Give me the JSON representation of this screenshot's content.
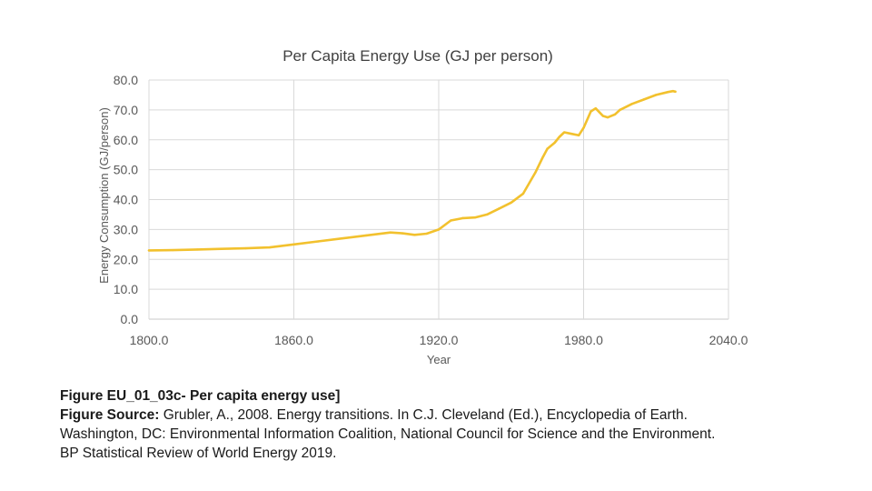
{
  "chart_data": {
    "type": "line",
    "title": "Per Capita Energy Use (GJ per person)",
    "xlabel": "Year",
    "ylabel": "Energy Consumption (GJ/person)",
    "xlim": [
      1800,
      2040
    ],
    "ylim": [
      0,
      80
    ],
    "xticks": [
      "1800.0",
      "1860.0",
      "1920.0",
      "1980.0",
      "2040.0"
    ],
    "yticks": [
      "0.0",
      "10.0",
      "20.0",
      "30.0",
      "40.0",
      "50.0",
      "60.0",
      "70.0",
      "80.0"
    ],
    "grid": true,
    "color": "#F2C12E",
    "series": [
      {
        "x": [
          1800,
          1810,
          1820,
          1830,
          1840,
          1850,
          1860,
          1870,
          1880,
          1890,
          1900,
          1905,
          1910,
          1915,
          1920,
          1925,
          1930,
          1935,
          1940,
          1945,
          1950,
          1955,
          1960,
          1963,
          1965,
          1968,
          1970,
          1972,
          1975,
          1978,
          1980,
          1983,
          1985,
          1988,
          1990,
          1993,
          1995,
          2000,
          2005,
          2010,
          2015,
          2017,
          2018
        ],
        "y": [
          23,
          23.1,
          23.3,
          23.5,
          23.7,
          24,
          25,
          26,
          27,
          28,
          29,
          28.7,
          28.2,
          28.6,
          30,
          33,
          33.8,
          34,
          35,
          37,
          39,
          42,
          49,
          54,
          57,
          59,
          61,
          62.5,
          62,
          61.5,
          64,
          69.5,
          70.5,
          68,
          67.5,
          68.5,
          70,
          72,
          73.5,
          75,
          76,
          76.3,
          76.1
        ]
      }
    ]
  },
  "caption": {
    "line1_bold": "Figure EU_01_03c- Per capita energy use]",
    "line2_bold": "Figure Source:",
    "line2_text": " Grubler, A., 2008. Energy transitions. In C.J. Cleveland (Ed.), Encyclopedia of Earth.",
    "line3_text": "Washington, DC: Environmental Information Coalition, National Council for Science and the Environment.",
    "line4_text": "BP Statistical Review of World Energy 2019."
  }
}
